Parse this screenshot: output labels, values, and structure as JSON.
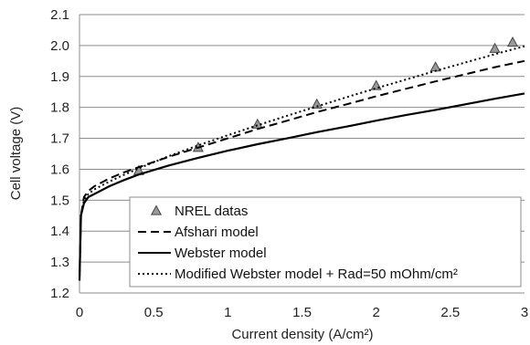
{
  "chart_data": {
    "type": "line",
    "title": "",
    "xlabel": "Current density (A/cm²)",
    "ylabel": "Cell voltage (V)",
    "xlim": [
      0,
      3
    ],
    "ylim": [
      1.2,
      2.1
    ],
    "xticks": [
      0,
      0.5,
      1,
      1.5,
      2,
      2.5,
      3
    ],
    "xtick_labels": [
      "0",
      "0.5",
      "1",
      "1.5",
      "2",
      "2.5",
      "3"
    ],
    "yticks": [
      1.2,
      1.3,
      1.4,
      1.5,
      1.6,
      1.7,
      1.8,
      1.9,
      2.0,
      2.1
    ],
    "ytick_labels": [
      "1.2",
      "1.3",
      "1.4",
      "1.5",
      "1.6",
      "1.7",
      "1.8",
      "1.9",
      "2.0",
      "2.1"
    ],
    "grid": "horizontal",
    "legend_position": "bottom-right",
    "series": [
      {
        "name": "NREL datas",
        "style": "markers-triangle",
        "color": "#999999",
        "x": [
          0.4,
          0.8,
          1.2,
          1.6,
          2.0,
          2.4,
          2.8,
          2.92
        ],
        "y": [
          1.595,
          1.67,
          1.745,
          1.81,
          1.87,
          1.93,
          1.99,
          2.01
        ]
      },
      {
        "name": "Afshari model",
        "style": "dashed",
        "color": "#000000",
        "x": [
          0.0,
          0.01,
          0.03,
          0.06,
          0.1,
          0.2,
          0.3,
          0.4,
          0.6,
          0.8,
          1.0,
          1.2,
          1.4,
          1.6,
          1.8,
          2.0,
          2.2,
          2.4,
          2.6,
          2.8,
          3.0
        ],
        "y": [
          1.25,
          1.45,
          1.51,
          1.53,
          1.545,
          1.57,
          1.59,
          1.607,
          1.64,
          1.67,
          1.7,
          1.73,
          1.757,
          1.785,
          1.81,
          1.836,
          1.86,
          1.884,
          1.907,
          1.93,
          1.95
        ]
      },
      {
        "name": "Webster model",
        "style": "solid",
        "color": "#000000",
        "x": [
          0.0,
          0.01,
          0.03,
          0.06,
          0.1,
          0.2,
          0.3,
          0.4,
          0.6,
          0.8,
          1.0,
          1.2,
          1.4,
          1.6,
          1.8,
          2.0,
          2.2,
          2.4,
          2.6,
          2.8,
          3.0
        ],
        "y": [
          1.24,
          1.45,
          1.49,
          1.51,
          1.52,
          1.545,
          1.565,
          1.583,
          1.612,
          1.637,
          1.66,
          1.681,
          1.7,
          1.72,
          1.738,
          1.757,
          1.775,
          1.792,
          1.81,
          1.828,
          1.845
        ]
      },
      {
        "name": "Modified Webster model + Rad=50 mOhm/cm²",
        "style": "dotted",
        "color": "#000000",
        "x": [
          0.0,
          0.01,
          0.03,
          0.06,
          0.1,
          0.2,
          0.3,
          0.4,
          0.6,
          0.8,
          1.0,
          1.2,
          1.4,
          1.6,
          1.8,
          2.0,
          2.2,
          2.4,
          2.6,
          2.8,
          3.0
        ],
        "y": [
          1.24,
          1.45,
          1.5,
          1.52,
          1.535,
          1.56,
          1.582,
          1.603,
          1.642,
          1.677,
          1.71,
          1.742,
          1.773,
          1.803,
          1.833,
          1.862,
          1.89,
          1.918,
          1.945,
          1.972,
          1.998
        ]
      }
    ]
  }
}
